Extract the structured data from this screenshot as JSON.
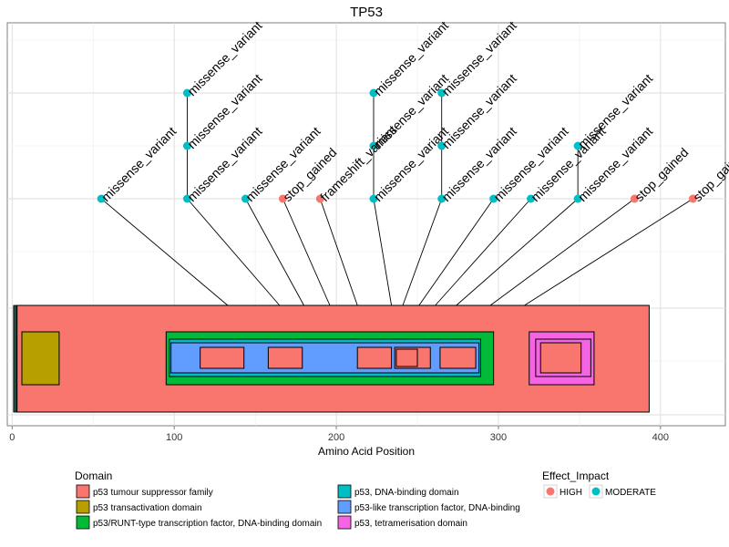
{
  "chart_data": {
    "type": "lollipop",
    "title": "TP53",
    "xlabel": "Amino Acid Position",
    "xlim": [
      -3,
      440
    ],
    "xticks": [
      0,
      100,
      200,
      300,
      400
    ],
    "grid": true,
    "colors": {
      "HIGH": "#F8766D",
      "MODERATE": "#00BFC4"
    },
    "domains": [
      {
        "name": "p53 tumour suppressor family",
        "start": 3,
        "end": 393,
        "color": "#F8766D",
        "level": 0
      },
      {
        "name": "p53 transactivation domain",
        "start": 6,
        "end": 29,
        "color": "#B79F00",
        "level": 1
      },
      {
        "name": "p53/RUNT-type transcription factor, DNA-binding domain",
        "start": 95,
        "end": 297,
        "color": "#00BA38",
        "level": 1
      },
      {
        "name": "p53, DNA-binding domain",
        "start": 97,
        "end": 289,
        "color": "#00BFC4",
        "level": 2
      },
      {
        "name": "p53-like transcription factor, DNA-binding",
        "start": 98,
        "end": 288,
        "color": "#619CFF",
        "level": 3
      },
      {
        "name": "p53 tumour suppressor family",
        "start": 116,
        "end": 143,
        "color": "#F8766D",
        "level": 4
      },
      {
        "name": "p53 tumour suppressor family",
        "start": 158,
        "end": 179,
        "color": "#F8766D",
        "level": 4
      },
      {
        "name": "p53 tumour suppressor family",
        "start": 213,
        "end": 234,
        "color": "#F8766D",
        "level": 4
      },
      {
        "name": "p53 tumour suppressor family",
        "start": 236,
        "end": 258,
        "color": "#F8766D",
        "level": 4
      },
      {
        "name": "p53 tumour suppressor family",
        "start": 237,
        "end": 250,
        "color": "#F8766D",
        "level": 5
      },
      {
        "name": "p53 tumour suppressor family",
        "start": 264,
        "end": 286,
        "color": "#F8766D",
        "level": 4
      },
      {
        "name": "p53, tetramerisation domain",
        "start": 319,
        "end": 359,
        "color": "#F564E3",
        "level": 1
      },
      {
        "name": "p53 tumour suppressor family",
        "start": 323,
        "end": 357,
        "color": "#F564E3",
        "level": 2
      },
      {
        "name": "p53 tumour suppressor family",
        "start": 326,
        "end": 351,
        "color": "#F8766D",
        "level": 3
      }
    ],
    "variants": [
      {
        "label": "missense_variant",
        "effect": "MODERATE",
        "pos": 55,
        "anchor": 133,
        "tier": 1
      },
      {
        "label": "missense_variant",
        "effect": "MODERATE",
        "pos": 108,
        "anchor": 165,
        "tier": 1
      },
      {
        "label": "missense_variant",
        "effect": "MODERATE",
        "pos": 108,
        "anchor": 165,
        "tier": 2
      },
      {
        "label": "missense_variant",
        "effect": "MODERATE",
        "pos": 108,
        "anchor": 165,
        "tier": 3
      },
      {
        "label": "missense_variant",
        "effect": "MODERATE",
        "pos": 144,
        "anchor": 180,
        "tier": 1
      },
      {
        "label": "stop_gained",
        "effect": "HIGH",
        "pos": 167,
        "anchor": 196,
        "tier": 1
      },
      {
        "label": "frameshift_variant",
        "effect": "HIGH",
        "pos": 190,
        "anchor": 213,
        "tier": 1
      },
      {
        "label": "missense_variant",
        "effect": "MODERATE",
        "pos": 223,
        "anchor": 234,
        "tier": 1
      },
      {
        "label": "missense_variant",
        "effect": "MODERATE",
        "pos": 223,
        "anchor": 234,
        "tier": 2
      },
      {
        "label": "missense_variant",
        "effect": "MODERATE",
        "pos": 223,
        "anchor": 234,
        "tier": 3
      },
      {
        "label": "missense_variant",
        "effect": "MODERATE",
        "pos": 265,
        "anchor": 241,
        "tier": 1
      },
      {
        "label": "missense_variant",
        "effect": "MODERATE",
        "pos": 265,
        "anchor": 241,
        "tier": 2
      },
      {
        "label": "missense_variant",
        "effect": "MODERATE",
        "pos": 265,
        "anchor": 241,
        "tier": 3
      },
      {
        "label": "missense_variant",
        "effect": "MODERATE",
        "pos": 297,
        "anchor": 251,
        "tier": 1
      },
      {
        "label": "missense_variant",
        "effect": "MODERATE",
        "pos": 320,
        "anchor": 261,
        "tier": 1
      },
      {
        "label": "missense_variant",
        "effect": "MODERATE",
        "pos": 349,
        "anchor": 274,
        "tier": 1
      },
      {
        "label": "missense_variant",
        "effect": "MODERATE",
        "pos": 349,
        "anchor": 274,
        "tier": 2
      },
      {
        "label": "stop_gained",
        "effect": "HIGH",
        "pos": 384,
        "anchor": 295,
        "tier": 1
      },
      {
        "label": "stop_gained",
        "effect": "HIGH",
        "pos": 420,
        "anchor": 316,
        "tier": 1
      }
    ],
    "legend": {
      "domain_title": "Domain",
      "domain_entries": [
        {
          "name": "p53 tumour suppressor family",
          "color": "#F8766D"
        },
        {
          "name": "p53 transactivation domain",
          "color": "#B79F00"
        },
        {
          "name": "p53/RUNT-type transcription factor, DNA-binding domain",
          "color": "#00BA38"
        },
        {
          "name": "p53, DNA-binding domain",
          "color": "#00BFC4"
        },
        {
          "name": "p53-like transcription factor, DNA-binding",
          "color": "#619CFF"
        },
        {
          "name": "p53, tetramerisation domain",
          "color": "#F564E3"
        }
      ],
      "effect_title": "Effect_Impact",
      "effect_entries": [
        {
          "name": "HIGH",
          "color": "#F8766D"
        },
        {
          "name": "MODERATE",
          "color": "#00BFC4"
        }
      ],
      "placement": "bottom"
    }
  }
}
